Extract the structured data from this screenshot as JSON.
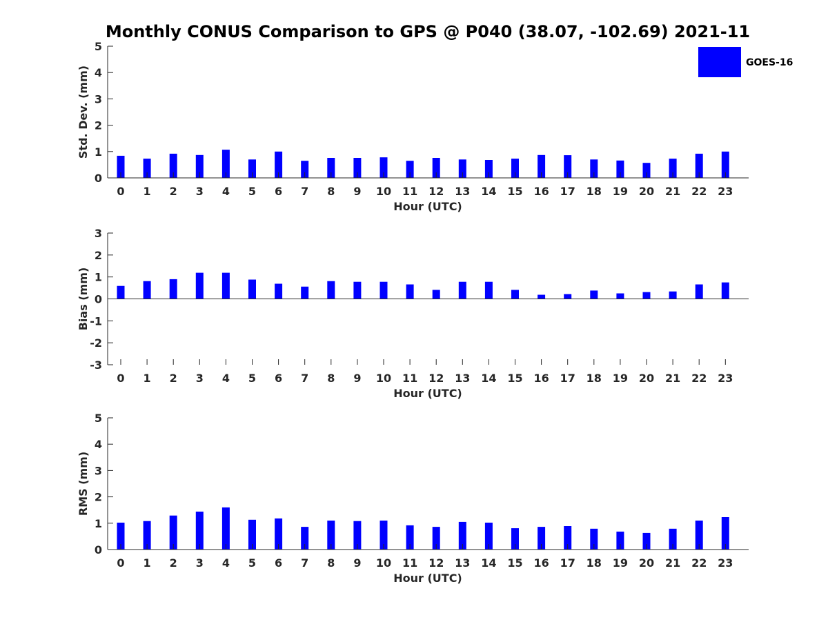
{
  "chart_data": {
    "title": "Monthly CONUS Comparison to GPS @ P040 (38.07, -102.69) 2021-11",
    "type": "bar",
    "legend": {
      "entries": [
        "GOES-16"
      ],
      "placement": "top-right",
      "color": "#0000ff"
    },
    "bar_color": "#0000ff",
    "subplots": [
      {
        "id": "std",
        "ylabel": "Std. Dev. (mm)",
        "xlabel": "Hour (UTC)",
        "ylim": [
          0,
          5
        ],
        "yticks": [
          "0",
          "1",
          "2",
          "3",
          "4",
          "5"
        ],
        "categories": [
          "0",
          "1",
          "2",
          "3",
          "4",
          "5",
          "6",
          "7",
          "8",
          "9",
          "10",
          "11",
          "12",
          "13",
          "14",
          "15",
          "16",
          "17",
          "18",
          "19",
          "20",
          "21",
          "22",
          "23"
        ],
        "series": [
          {
            "name": "GOES-16",
            "values": [
              0.84,
              0.73,
              0.92,
              0.87,
              1.07,
              0.7,
              1.0,
              0.65,
              0.76,
              0.76,
              0.78,
              0.65,
              0.76,
              0.7,
              0.68,
              0.73,
              0.87,
              0.86,
              0.7,
              0.66,
              0.57,
              0.73,
              0.92,
              1.0
            ]
          }
        ]
      },
      {
        "id": "bias",
        "ylabel": "Bias (mm)",
        "xlabel": "Hour (UTC)",
        "ylim": [
          -3,
          3
        ],
        "yticks": [
          "-3",
          "-2",
          "-1",
          "0",
          "1",
          "2",
          "3"
        ],
        "categories": [
          "0",
          "1",
          "2",
          "3",
          "4",
          "5",
          "6",
          "7",
          "8",
          "9",
          "10",
          "11",
          "12",
          "13",
          "14",
          "15",
          "16",
          "17",
          "18",
          "19",
          "20",
          "21",
          "22",
          "23"
        ],
        "series": [
          {
            "name": "GOES-16",
            "values": [
              0.59,
              0.81,
              0.9,
              1.19,
              1.19,
              0.88,
              0.69,
              0.56,
              0.81,
              0.78,
              0.78,
              0.66,
              0.41,
              0.78,
              0.78,
              0.41,
              0.19,
              0.22,
              0.38,
              0.25,
              0.31,
              0.34,
              0.66,
              0.75
            ]
          }
        ]
      },
      {
        "id": "rms",
        "ylabel": "RMS (mm)",
        "xlabel": "Hour (UTC)",
        "ylim": [
          0,
          5
        ],
        "yticks": [
          "0",
          "1",
          "2",
          "3",
          "4",
          "5"
        ],
        "categories": [
          "0",
          "1",
          "2",
          "3",
          "4",
          "5",
          "6",
          "7",
          "8",
          "9",
          "10",
          "11",
          "12",
          "13",
          "14",
          "15",
          "16",
          "17",
          "18",
          "19",
          "20",
          "21",
          "22",
          "23"
        ],
        "series": [
          {
            "name": "GOES-16",
            "values": [
              1.02,
              1.08,
              1.29,
              1.44,
              1.6,
              1.13,
              1.18,
              0.86,
              1.1,
              1.08,
              1.1,
              0.92,
              0.86,
              1.05,
              1.02,
              0.81,
              0.86,
              0.89,
              0.79,
              0.68,
              0.63,
              0.79,
              1.1,
              1.23
            ]
          }
        ]
      }
    ]
  }
}
